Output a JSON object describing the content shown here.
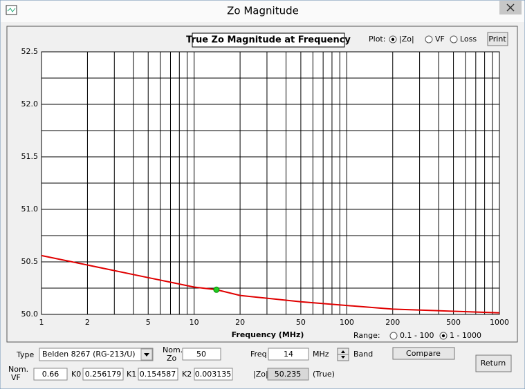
{
  "window": {
    "title": "Zo Magnitude"
  },
  "plot_options": {
    "label": "Plot:",
    "options": [
      {
        "label": "|Zo|",
        "checked": true
      },
      {
        "label": "VF",
        "checked": false
      },
      {
        "label": "Loss",
        "checked": false
      }
    ],
    "print_button": "Print"
  },
  "chart_data": {
    "type": "line",
    "title": "True Zo Magnitude at Frequency",
    "x_label": "Frequency (MHz)",
    "x": [
      1,
      2,
      5,
      10,
      14,
      20,
      50,
      100,
      200,
      500,
      1000
    ],
    "series": [
      {
        "color": "#e00000",
        "values": [
          50.56,
          50.47,
          50.35,
          50.26,
          50.235,
          50.18,
          50.12,
          50.085,
          50.05,
          50.03,
          50.015
        ]
      }
    ],
    "marker": {
      "x": 14,
      "y": 50.235,
      "color": "#22cc22"
    },
    "xlog": true,
    "xlim": [
      1,
      1000
    ],
    "xticks": [
      1,
      2,
      5,
      10,
      20,
      50,
      100,
      200,
      500,
      1000
    ],
    "xminor": [
      3,
      4,
      6,
      7,
      8,
      9,
      30,
      40,
      60,
      70,
      80,
      90,
      300,
      400,
      600,
      700,
      800,
      900
    ],
    "ylim": [
      50,
      52.5
    ],
    "yticks": [
      {
        "value": 50,
        "label": "50.0"
      },
      50.5,
      {
        "value": 51,
        "label": "51.0"
      },
      51.5,
      {
        "value": 52,
        "label": "52.0"
      },
      52.5
    ],
    "yminor": [
      50.25,
      50.75,
      51.25,
      51.75,
      52.25
    ],
    "grid": true
  },
  "range": {
    "label": "Range:",
    "options": [
      {
        "label": "0.1 - 100",
        "checked": false
      },
      {
        "label": "1 - 1000",
        "checked": true
      }
    ]
  },
  "controls": {
    "type_label": "Type",
    "type_value": "Belden 8267   (RG-213/U)",
    "nom_zo_label": {
      "line1": "Nom.",
      "line2": "Zo"
    },
    "nom_zo_value": "50",
    "freq_label": "Freq",
    "freq_value": "14",
    "freq_unit": "MHz",
    "band_label": "Band",
    "compare_button": "Compare",
    "return_button": "Return",
    "nom_vf_label": {
      "line1": "Nom.",
      "line2": "VF"
    },
    "nom_vf_value": "0.66",
    "k0_label": "K0",
    "k0_value": "0.256179",
    "k1_label": "K1",
    "k1_value": "0.154587",
    "k2_label": "K2",
    "k2_value": "0.003135",
    "zo_label": "|Zo|",
    "zo_value": "50.235",
    "zo_note": "(True)"
  }
}
